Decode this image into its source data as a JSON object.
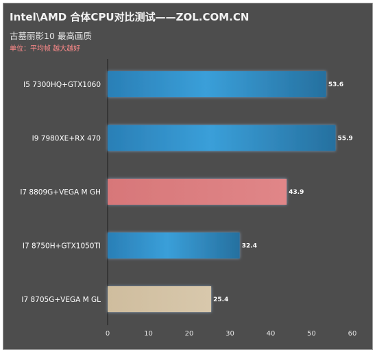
{
  "header": {
    "title": "Intel\\AMD 合体CPU对比测试——ZOL.COM.CN",
    "subtitle": "古墓丽影10 最高画质",
    "unit": "单位：平均帧   越大越好"
  },
  "colors": {
    "background": "#4d4d4d",
    "blue_bar": "#2f8fca",
    "pink_bar": "#dc7e80",
    "tan_bar": "#d3c2a4"
  },
  "chart_data": {
    "type": "bar",
    "orientation": "horizontal",
    "title": "Intel\\AMD 合体CPU对比测试——ZOL.COM.CN",
    "subtitle": "古墓丽影10 最高画质",
    "categories": [
      "I5 7300HQ+GTX1060",
      "I9 7980XE+RX 470",
      "I7 8809G+VEGA M GH",
      "I7 8750H+GTX1050TI",
      "I7 8705G+VEGA M GL"
    ],
    "values": [
      53.6,
      55.9,
      43.9,
      32.4,
      25.4
    ],
    "value_labels": [
      "53.6",
      "55.9",
      "43.9",
      "32.4",
      "25.4"
    ],
    "bar_colors": [
      "blue",
      "blue",
      "pink",
      "blue",
      "tan"
    ],
    "xlim": [
      0,
      60
    ],
    "xticks": [
      "0",
      "10",
      "20",
      "30",
      "40",
      "50",
      "60"
    ],
    "grid": false,
    "legend": "none"
  }
}
